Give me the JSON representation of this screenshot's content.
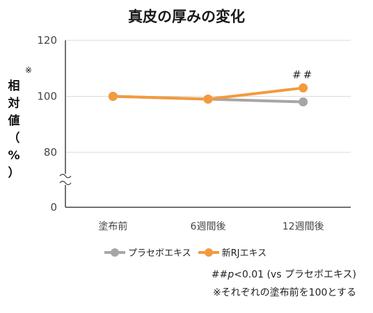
{
  "chart_data": {
    "type": "line",
    "title": "真皮の厚みの変化",
    "ylabel_chars": [
      "相",
      "対",
      "値",
      "（",
      "%",
      "）"
    ],
    "ylabel_note": "※",
    "categories": [
      "塗布前",
      "6週間後",
      "12週間後"
    ],
    "yticks": [
      0,
      80,
      100,
      120
    ],
    "ylim": [
      0,
      120
    ],
    "axis_break": true,
    "grid": true,
    "legend_position": "bottom",
    "series": [
      {
        "name": "プラセボエキス",
        "values": [
          100,
          99,
          98
        ],
        "color": "#a6a6a6"
      },
      {
        "name": "新RJエキス",
        "values": [
          100,
          99,
          103
        ],
        "color": "#f39a3e"
      }
    ],
    "annotations": [
      {
        "text": "##",
        "category": "12週間後",
        "series": "新RJエキス"
      }
    ],
    "footnotes": {
      "sig_prefix": "##",
      "sig_p": "p",
      "sig_rest": "<0.01 (vs プラセボエキス)",
      "note": "※それぞれの塗布前を100とする"
    }
  }
}
